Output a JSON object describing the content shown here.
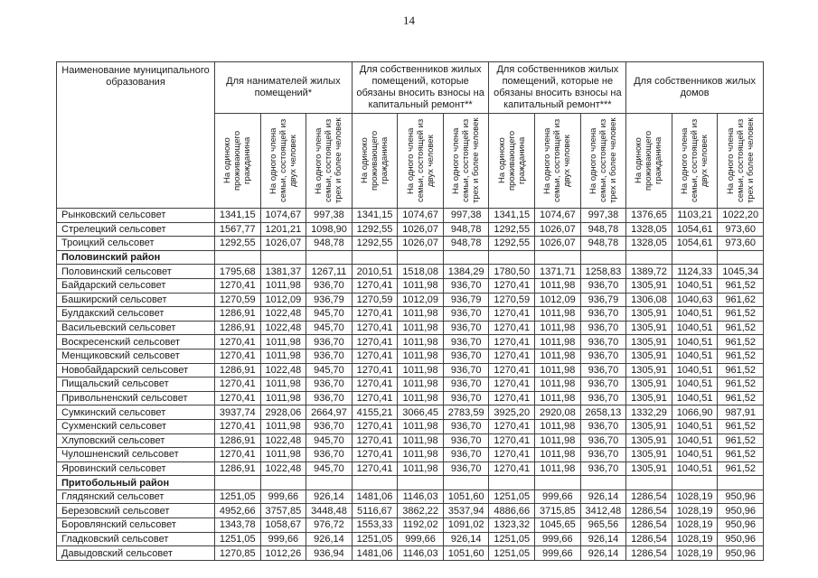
{
  "page": {
    "number": "14"
  },
  "colors": {
    "background": "#ffffff",
    "text": "#1a1a1a",
    "border": "#3f3f3f"
  },
  "table": {
    "name_header": "Наименование муниципального образования",
    "groups": [
      {
        "label": "Для нанимателей жилых помещений*"
      },
      {
        "label": "Для собственников жилых помещений, которые обязаны вносить взносы на капитальный ремонт**"
      },
      {
        "label": "Для собственников жилых помещений, которые не обязаны вносить взносы на капитальный ремонт***"
      },
      {
        "label": "Для собственников жилых домов"
      }
    ],
    "subheaders": [
      "На одиноко проживающего гражданина",
      "На одного члена семьи, состоящей из двух человек",
      "На одного члена семьи, состоящей из трех и более человек"
    ],
    "rows": [
      {
        "type": "data",
        "name": "Рынковский сельсовет",
        "values": [
          "1341,15",
          "1074,67",
          "997,38",
          "1341,15",
          "1074,67",
          "997,38",
          "1341,15",
          "1074,67",
          "997,38",
          "1376,65",
          "1103,21",
          "1022,20"
        ]
      },
      {
        "type": "data",
        "name": "Стрелецкий сельсовет",
        "values": [
          "1567,77",
          "1201,21",
          "1098,90",
          "1292,55",
          "1026,07",
          "948,78",
          "1292,55",
          "1026,07",
          "948,78",
          "1328,05",
          "1054,61",
          "973,60"
        ]
      },
      {
        "type": "data",
        "name": "Троицкий сельсовет",
        "values": [
          "1292,55",
          "1026,07",
          "948,78",
          "1292,55",
          "1026,07",
          "948,78",
          "1292,55",
          "1026,07",
          "948,78",
          "1328,05",
          "1054,61",
          "973,60"
        ]
      },
      {
        "type": "section",
        "name": "Половинский район",
        "values": [
          "",
          "",
          "",
          "",
          "",
          "",
          "",
          "",
          "",
          "",
          "",
          ""
        ]
      },
      {
        "type": "data",
        "name": "Половинский сельсовет",
        "values": [
          "1795,68",
          "1381,37",
          "1267,11",
          "2010,51",
          "1518,08",
          "1384,29",
          "1780,50",
          "1371,71",
          "1258,83",
          "1389,72",
          "1124,33",
          "1045,34"
        ]
      },
      {
        "type": "data",
        "name": "Байдарский сельсовет",
        "values": [
          "1270,41",
          "1011,98",
          "936,70",
          "1270,41",
          "1011,98",
          "936,70",
          "1270,41",
          "1011,98",
          "936,70",
          "1305,91",
          "1040,51",
          "961,52"
        ]
      },
      {
        "type": "data",
        "name": "Башкирский сельсовет",
        "values": [
          "1270,59",
          "1012,09",
          "936,79",
          "1270,59",
          "1012,09",
          "936,79",
          "1270,59",
          "1012,09",
          "936,79",
          "1306,08",
          "1040,63",
          "961,62"
        ]
      },
      {
        "type": "data",
        "name": "Булдакский сельсовет",
        "values": [
          "1286,91",
          "1022,48",
          "945,70",
          "1270,41",
          "1011,98",
          "936,70",
          "1270,41",
          "1011,98",
          "936,70",
          "1305,91",
          "1040,51",
          "961,52"
        ]
      },
      {
        "type": "data",
        "name": "Васильевский сельсовет",
        "values": [
          "1286,91",
          "1022,48",
          "945,70",
          "1270,41",
          "1011,98",
          "936,70",
          "1270,41",
          "1011,98",
          "936,70",
          "1305,91",
          "1040,51",
          "961,52"
        ]
      },
      {
        "type": "data",
        "name": "Воскресенский сельсовет",
        "values": [
          "1270,41",
          "1011,98",
          "936,70",
          "1270,41",
          "1011,98",
          "936,70",
          "1270,41",
          "1011,98",
          "936,70",
          "1305,91",
          "1040,51",
          "961,52"
        ]
      },
      {
        "type": "data",
        "name": "Менщиковский сельсовет",
        "values": [
          "1270,41",
          "1011,98",
          "936,70",
          "1270,41",
          "1011,98",
          "936,70",
          "1270,41",
          "1011,98",
          "936,70",
          "1305,91",
          "1040,51",
          "961,52"
        ]
      },
      {
        "type": "data",
        "name": "Новобайдарский сельсовет",
        "values": [
          "1286,91",
          "1022,48",
          "945,70",
          "1270,41",
          "1011,98",
          "936,70",
          "1270,41",
          "1011,98",
          "936,70",
          "1305,91",
          "1040,51",
          "961,52"
        ]
      },
      {
        "type": "data",
        "name": "Пищальский сельсовет",
        "values": [
          "1270,41",
          "1011,98",
          "936,70",
          "1270,41",
          "1011,98",
          "936,70",
          "1270,41",
          "1011,98",
          "936,70",
          "1305,91",
          "1040,51",
          "961,52"
        ]
      },
      {
        "type": "data",
        "name": "Привольненский сельсовет",
        "values": [
          "1270,41",
          "1011,98",
          "936,70",
          "1270,41",
          "1011,98",
          "936,70",
          "1270,41",
          "1011,98",
          "936,70",
          "1305,91",
          "1040,51",
          "961,52"
        ]
      },
      {
        "type": "data",
        "name": "Сумкинский сельсовет",
        "values": [
          "3937,74",
          "2928,06",
          "2664,97",
          "4155,21",
          "3066,45",
          "2783,59",
          "3925,20",
          "2920,08",
          "2658,13",
          "1332,29",
          "1066,90",
          "987,91"
        ]
      },
      {
        "type": "data",
        "name": "Сухменский сельсовет",
        "values": [
          "1270,41",
          "1011,98",
          "936,70",
          "1270,41",
          "1011,98",
          "936,70",
          "1270,41",
          "1011,98",
          "936,70",
          "1305,91",
          "1040,51",
          "961,52"
        ]
      },
      {
        "type": "data",
        "name": "Хлуповский сельсовет",
        "values": [
          "1286,91",
          "1022,48",
          "945,70",
          "1270,41",
          "1011,98",
          "936,70",
          "1270,41",
          "1011,98",
          "936,70",
          "1305,91",
          "1040,51",
          "961,52"
        ]
      },
      {
        "type": "data",
        "name": "Чулошненский сельсовет",
        "values": [
          "1270,41",
          "1011,98",
          "936,70",
          "1270,41",
          "1011,98",
          "936,70",
          "1270,41",
          "1011,98",
          "936,70",
          "1305,91",
          "1040,51",
          "961,52"
        ]
      },
      {
        "type": "data",
        "name": "Яровинский сельсовет",
        "values": [
          "1286,91",
          "1022,48",
          "945,70",
          "1270,41",
          "1011,98",
          "936,70",
          "1270,41",
          "1011,98",
          "936,70",
          "1305,91",
          "1040,51",
          "961,52"
        ]
      },
      {
        "type": "section",
        "name": "Притобольный район",
        "values": [
          "",
          "",
          "",
          "",
          "",
          "",
          "",
          "",
          "",
          "",
          "",
          ""
        ]
      },
      {
        "type": "data",
        "name": "Глядянский сельсовет",
        "values": [
          "1251,05",
          "999,66",
          "926,14",
          "1481,06",
          "1146,03",
          "1051,60",
          "1251,05",
          "999,66",
          "926,14",
          "1286,54",
          "1028,19",
          "950,96"
        ]
      },
      {
        "type": "data",
        "name": "Березовский сельсовет",
        "values": [
          "4952,66",
          "3757,85",
          "3448,48",
          "5116,67",
          "3862,22",
          "3537,94",
          "4886,66",
          "3715,85",
          "3412,48",
          "1286,54",
          "1028,19",
          "950,96"
        ]
      },
      {
        "type": "data",
        "name": "Боровлянский сельсовет",
        "values": [
          "1343,78",
          "1058,67",
          "976,72",
          "1553,33",
          "1192,02",
          "1091,02",
          "1323,32",
          "1045,65",
          "965,56",
          "1286,54",
          "1028,19",
          "950,96"
        ]
      },
      {
        "type": "data",
        "name": "Гладковский сельсовет",
        "values": [
          "1251,05",
          "999,66",
          "926,14",
          "1251,05",
          "999,66",
          "926,14",
          "1251,05",
          "999,66",
          "926,14",
          "1286,54",
          "1028,19",
          "950,96"
        ]
      },
      {
        "type": "data",
        "name": "Давыдовский сельсовет",
        "values": [
          "1270,85",
          "1012,26",
          "936,94",
          "1481,06",
          "1146,03",
          "1051,60",
          "1251,05",
          "999,66",
          "926,14",
          "1286,54",
          "1028,19",
          "950,96"
        ]
      }
    ]
  }
}
